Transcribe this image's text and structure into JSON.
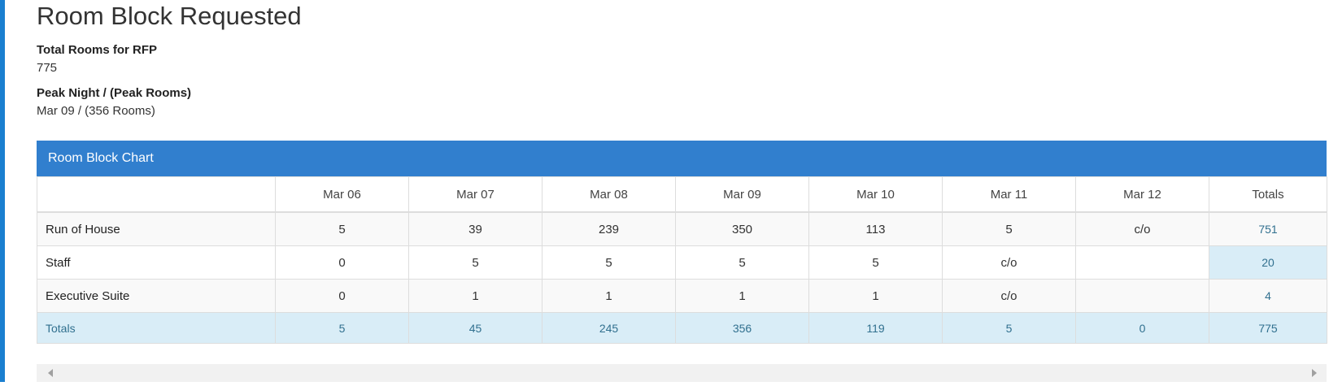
{
  "header": {
    "title": "Room Block Requested"
  },
  "fields": [
    {
      "label": "Total Rooms for RFP",
      "value": "775"
    },
    {
      "label": "Peak Night / (Peak Rooms)",
      "value": "Mar 09 / (356 Rooms)"
    }
  ],
  "table": {
    "title": "Room Block Chart",
    "columns": [
      "Mar 06",
      "Mar 07",
      "Mar 08",
      "Mar 09",
      "Mar 10",
      "Mar 11",
      "Mar 12",
      "Totals"
    ],
    "rows": [
      {
        "label": "Run of House",
        "cells": [
          "5",
          "39",
          "239",
          "350",
          "113",
          "5",
          "c/o"
        ],
        "total": "751"
      },
      {
        "label": "Staff",
        "cells": [
          "0",
          "5",
          "5",
          "5",
          "5",
          "c/o",
          null
        ],
        "total": "20"
      },
      {
        "label": "Executive Suite",
        "cells": [
          "0",
          "1",
          "1",
          "1",
          "1",
          "c/o",
          null
        ],
        "total": "4"
      }
    ],
    "totals": {
      "label": "Totals",
      "cells": [
        "5",
        "45",
        "245",
        "356",
        "119",
        "5",
        "0"
      ],
      "total": "775"
    }
  }
}
